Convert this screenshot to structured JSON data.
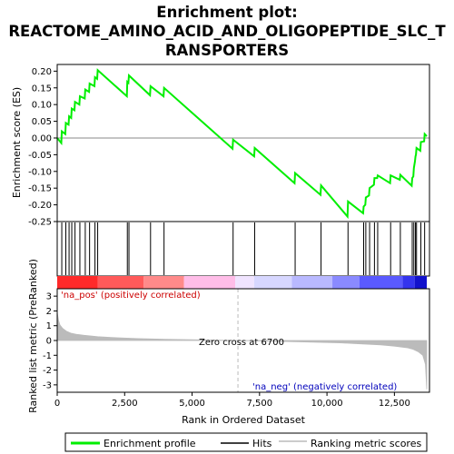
{
  "chart_data": {
    "type": "line",
    "title_line1": "Enrichment plot:",
    "title_line2": "REACTOME_AMINO_ACID_AND_OLIGOPEPTIDE_SLC_T",
    "title_line3": "RANSPORTERS",
    "es_panel": {
      "ylabel": "Enrichment score (ES)",
      "ylim": [
        -0.25,
        0.22
      ],
      "yticks": [
        0.2,
        0.15,
        0.1,
        0.05,
        0.0,
        -0.05,
        -0.1,
        -0.15,
        -0.2,
        -0.25
      ],
      "ytick_labels": [
        "0.20",
        "0.15",
        "0.10",
        "0.05",
        "0.00",
        "-0.05",
        "-0.10",
        "-0.15",
        "-0.20",
        "-0.25"
      ],
      "series": [
        {
          "name": "Enrichment profile",
          "color": "#00ee00",
          "x": [
            0,
            150,
            170,
            300,
            320,
            420,
            440,
            520,
            540,
            640,
            660,
            820,
            840,
            1020,
            1040,
            1180,
            1200,
            1380,
            1400,
            1480,
            1500,
            2580,
            2600,
            2640,
            2660,
            3440,
            3460,
            3940,
            3960,
            6500,
            6520,
            7300,
            7320,
            8800,
            8820,
            9760,
            9780,
            10760,
            10780,
            11340,
            11360,
            11420,
            11440,
            11560,
            11580,
            11740,
            11760,
            11860,
            11880,
            12340,
            12360,
            12700,
            12720,
            13140,
            13160,
            13200,
            13220,
            13260,
            13280,
            13300,
            13320,
            13460,
            13480,
            13600,
            13620,
            13700
          ],
          "y": [
            0.0,
            -0.015,
            0.02,
            0.012,
            0.045,
            0.04,
            0.065,
            0.06,
            0.088,
            0.083,
            0.108,
            0.1,
            0.125,
            0.118,
            0.145,
            0.138,
            0.163,
            0.155,
            0.182,
            0.177,
            0.203,
            0.125,
            0.168,
            0.165,
            0.187,
            0.128,
            0.155,
            0.125,
            0.15,
            -0.032,
            -0.005,
            -0.055,
            -0.03,
            -0.135,
            -0.105,
            -0.17,
            -0.142,
            -0.235,
            -0.19,
            -0.225,
            -0.205,
            -0.2,
            -0.178,
            -0.172,
            -0.15,
            -0.14,
            -0.12,
            -0.12,
            -0.112,
            -0.135,
            -0.112,
            -0.125,
            -0.11,
            -0.143,
            -0.12,
            -0.115,
            -0.09,
            -0.07,
            -0.055,
            -0.05,
            -0.03,
            -0.038,
            -0.012,
            -0.01,
            0.012,
            0.005
          ]
        }
      ]
    },
    "hits_panel": {
      "hit_positions": [
        170,
        320,
        440,
        540,
        660,
        840,
        1040,
        1200,
        1400,
        1500,
        2600,
        2660,
        3460,
        3960,
        6520,
        7320,
        8820,
        9780,
        10780,
        11360,
        11440,
        11580,
        11760,
        11880,
        12360,
        12720,
        13160,
        13220,
        13280,
        13320,
        13480,
        13620
      ]
    },
    "ranked_panel": {
      "ylabel": "Ranked list metric (PreRanked)",
      "ylim": [
        -3.5,
        3.5
      ],
      "yticks": [
        3,
        2,
        1,
        0,
        -1,
        -2,
        -3
      ],
      "ytick_labels": [
        "3",
        "2",
        "1",
        "0",
        "-1",
        "-2",
        "-3"
      ],
      "metric_x": [
        0,
        50,
        100,
        200,
        350,
        500,
        700,
        1000,
        1500,
        2000,
        3000,
        4000,
        5000,
        6000,
        6700,
        7500,
        8500,
        9500,
        10500,
        11000,
        11500,
        12000,
        12500,
        13000,
        13200,
        13400,
        13550,
        13650,
        13700
      ],
      "metric_y": [
        1.9,
        1.35,
        1.05,
        0.82,
        0.62,
        0.5,
        0.42,
        0.35,
        0.26,
        0.2,
        0.13,
        0.08,
        0.05,
        0.02,
        0.0,
        -0.03,
        -0.07,
        -0.11,
        -0.16,
        -0.2,
        -0.25,
        -0.3,
        -0.38,
        -0.5,
        -0.6,
        -0.78,
        -1.0,
        -1.6,
        -3.3
      ],
      "pos_label": "'na_pos' (positively correlated)",
      "neg_label": "'na_neg' (negatively correlated)",
      "zero_cross_label": "Zero cross at 6700",
      "zero_cross": 6700
    },
    "xlabel": "Rank in Ordered Dataset",
    "xlim": [
      0,
      13800
    ],
    "xticks": [
      0,
      2500,
      5000,
      7500,
      10000,
      12500
    ],
    "xtick_labels": [
      "0",
      "2,500",
      "5,000",
      "7,500",
      "10,000",
      "12,500"
    ],
    "color_bar": {
      "segments": [
        {
          "from": 0,
          "to": 1500,
          "color": "#ff2a2a"
        },
        {
          "from": 1500,
          "to": 3200,
          "color": "#ff5a5a"
        },
        {
          "from": 3200,
          "to": 4700,
          "color": "#ff8a8a"
        },
        {
          "from": 4700,
          "to": 6600,
          "color": "#ffbde8"
        },
        {
          "from": 6600,
          "to": 7300,
          "color": "#f0e4ff"
        },
        {
          "from": 7300,
          "to": 8700,
          "color": "#d7d7ff"
        },
        {
          "from": 8700,
          "to": 10200,
          "color": "#b9b9ff"
        },
        {
          "from": 10200,
          "to": 11200,
          "color": "#8a8aff"
        },
        {
          "from": 11200,
          "to": 12800,
          "color": "#5a5aff"
        },
        {
          "from": 12800,
          "to": 13250,
          "color": "#3434ee"
        },
        {
          "from": 13250,
          "to": 13700,
          "color": "#1212cc"
        }
      ]
    },
    "legend": [
      {
        "label": "Enrichment profile",
        "color": "#00ee00"
      },
      {
        "label": "Hits",
        "color": "#000000"
      },
      {
        "label": "Ranking metric scores",
        "color": "#bbbbbb"
      }
    ],
    "colors": {
      "profile": "#00ee00",
      "hits": "#000000",
      "metric_fill": "#bbbbbb",
      "pos_text": "#cc0000",
      "neg_text": "#0000bb",
      "zero_line": "#bbbbbb"
    }
  }
}
